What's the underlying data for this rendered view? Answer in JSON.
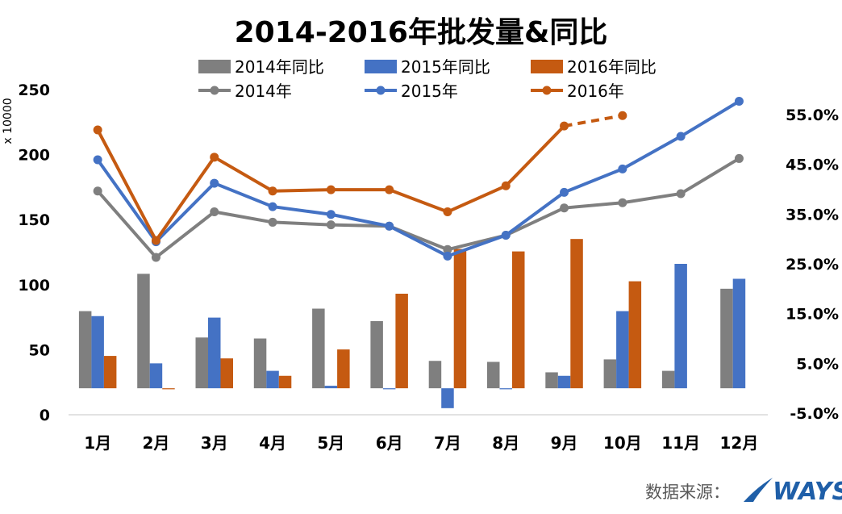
{
  "chart_data": {
    "type": "bar+line",
    "title": "2014-2016年批发量&同比",
    "y_left_unit": "x 10000",
    "categories": [
      "1月",
      "2月",
      "3月",
      "4月",
      "5月",
      "6月",
      "7月",
      "8月",
      "9月",
      "10月",
      "11月",
      "12月"
    ],
    "y_left": {
      "ticks": [
        "0",
        "50",
        "100",
        "150",
        "200",
        "250"
      ],
      "range": [
        0,
        250
      ]
    },
    "y_right": {
      "ticks": [
        "-5.0%",
        "5.0%",
        "15.0%",
        "25.0%",
        "35.0%",
        "45.0%",
        "55.0%"
      ],
      "range": [
        -5,
        60
      ]
    },
    "bar_series": [
      {
        "name": "2014年同比",
        "color": "#7f7f7f",
        "values": [
          15.5,
          23.0,
          10.2,
          10.0,
          16.0,
          13.5,
          5.5,
          5.3,
          3.2,
          5.8,
          3.5,
          20.0
        ]
      },
      {
        "name": "2015年同比",
        "color": "#4472c4",
        "values": [
          14.5,
          5.0,
          14.2,
          3.5,
          0.5,
          -0.2,
          -4.0,
          -0.2,
          2.5,
          15.5,
          25.0,
          22.0
        ]
      },
      {
        "name": "2016年同比",
        "color": "#c55a11",
        "values": [
          6.5,
          -0.2,
          6.0,
          2.5,
          7.8,
          19.0,
          28.0,
          27.5,
          30.0,
          21.5,
          null,
          null
        ]
      }
    ],
    "line_series": [
      {
        "name": "2014年",
        "color": "#7f7f7f",
        "values": [
          172,
          121,
          156,
          148,
          146,
          145,
          127,
          138,
          159,
          163,
          170,
          197
        ],
        "dashed_from": null
      },
      {
        "name": "2015年",
        "color": "#4472c4",
        "values": [
          196,
          133,
          178,
          160,
          154,
          145,
          122,
          138,
          171,
          189,
          214,
          241
        ],
        "dashed_from": null
      },
      {
        "name": "2016年",
        "color": "#c55a11",
        "values": [
          219,
          134,
          198,
          172,
          173,
          173,
          156,
          176,
          222,
          230,
          null,
          null
        ],
        "dashed_from": 8
      }
    ]
  },
  "footer": {
    "source_label": "数据来源：",
    "logo_text": "WAYS"
  }
}
